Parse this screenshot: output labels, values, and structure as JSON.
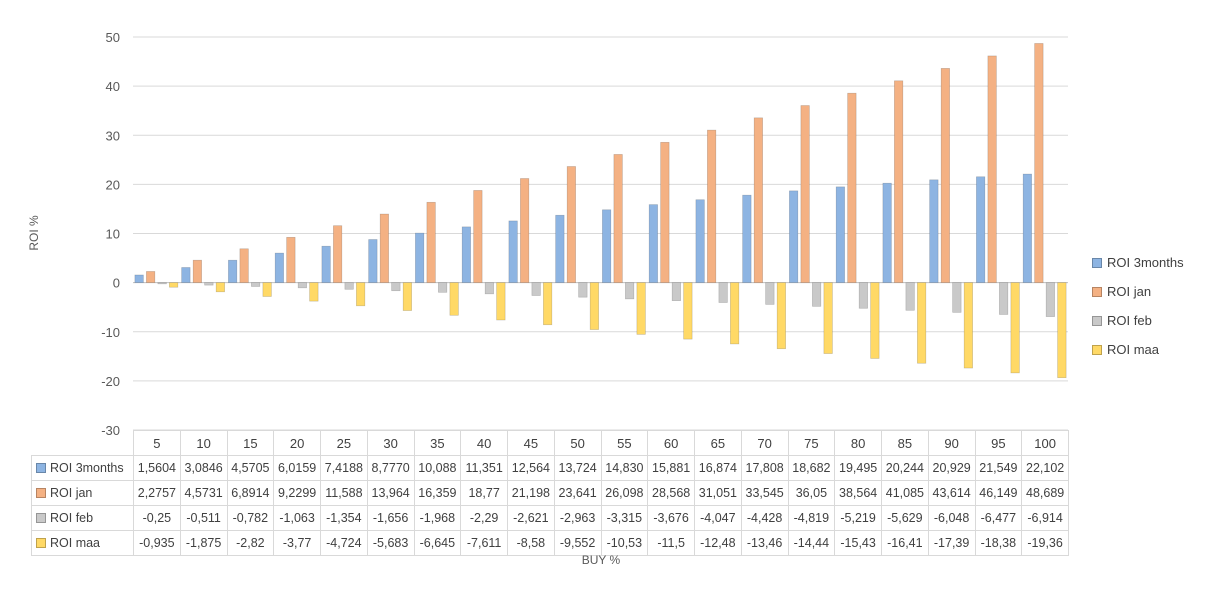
{
  "chart_data": {
    "type": "bar",
    "title": "",
    "xlabel": "BUY %",
    "ylabel": "ROI %",
    "ylim": [
      -30,
      50
    ],
    "yticks": [
      50,
      40,
      30,
      20,
      10,
      0,
      -10,
      -20,
      -30
    ],
    "grid": true,
    "legend": "right",
    "categories": [
      "5",
      "10",
      "15",
      "20",
      "25",
      "30",
      "35",
      "40",
      "45",
      "50",
      "55",
      "60",
      "65",
      "70",
      "75",
      "80",
      "85",
      "90",
      "95",
      "100"
    ],
    "series": [
      {
        "name": "ROI 3months",
        "color": "#8db4e2",
        "values": [
          1.5604,
          3.0846,
          4.5705,
          6.0159,
          7.4188,
          8.777,
          10.088,
          11.351,
          12.564,
          13.724,
          14.83,
          15.881,
          16.874,
          17.808,
          18.682,
          19.495,
          20.244,
          20.929,
          21.549,
          22.102
        ],
        "labels": [
          "1,5604",
          "3,0846",
          "4,5705",
          "6,0159",
          "7,4188",
          "8,7770",
          "10,088",
          "11,351",
          "12,564",
          "13,724",
          "14,830",
          "15,881",
          "16,874",
          "17,808",
          "18,682",
          "19,495",
          "20,244",
          "20,929",
          "21,549",
          "22,102"
        ]
      },
      {
        "name": "ROI jan",
        "color": "#f4b183",
        "values": [
          2.2757,
          4.5731,
          6.8914,
          9.2299,
          11.588,
          13.964,
          16.359,
          18.77,
          21.198,
          23.641,
          26.098,
          28.568,
          31.051,
          33.545,
          36.05,
          38.564,
          41.085,
          43.614,
          46.149,
          48.689
        ],
        "labels": [
          "2,2757",
          "4,5731",
          "6,8914",
          "9,2299",
          "11,588",
          "13,964",
          "16,359",
          "18,77",
          "21,198",
          "23,641",
          "26,098",
          "28,568",
          "31,051",
          "33,545",
          "36,05",
          "38,564",
          "41,085",
          "43,614",
          "46,149",
          "48,689"
        ]
      },
      {
        "name": "ROI feb",
        "color": "#c9c9c9",
        "values": [
          -0.25,
          -0.511,
          -0.782,
          -1.063,
          -1.354,
          -1.656,
          -1.968,
          -2.29,
          -2.621,
          -2.963,
          -3.315,
          -3.676,
          -4.047,
          -4.428,
          -4.819,
          -5.219,
          -5.629,
          -6.048,
          -6.477,
          -6.914
        ],
        "labels": [
          "-0,25",
          "-0,511",
          "-0,782",
          "-1,063",
          "-1,354",
          "-1,656",
          "-1,968",
          "-2,29",
          "-2,621",
          "-2,963",
          "-3,315",
          "-3,676",
          "-4,047",
          "-4,428",
          "-4,819",
          "-5,219",
          "-5,629",
          "-6,048",
          "-6,477",
          "-6,914"
        ]
      },
      {
        "name": "ROI maa",
        "color": "#ffd966",
        "values": [
          -0.935,
          -1.875,
          -2.82,
          -3.77,
          -4.724,
          -5.683,
          -6.645,
          -7.611,
          -8.58,
          -9.552,
          -10.53,
          -11.5,
          -12.48,
          -13.46,
          -14.44,
          -15.43,
          -16.41,
          -17.39,
          -18.38,
          -19.36
        ],
        "labels": [
          "-0,935",
          "-1,875",
          "-2,82",
          "-3,77",
          "-4,724",
          "-5,683",
          "-6,645",
          "-7,611",
          "-8,58",
          "-9,552",
          "-10,53",
          "-11,5",
          "-12,48",
          "-13,46",
          "-14,44",
          "-15,43",
          "-16,41",
          "-17,39",
          "-18,38",
          "-19,36"
        ]
      }
    ]
  }
}
